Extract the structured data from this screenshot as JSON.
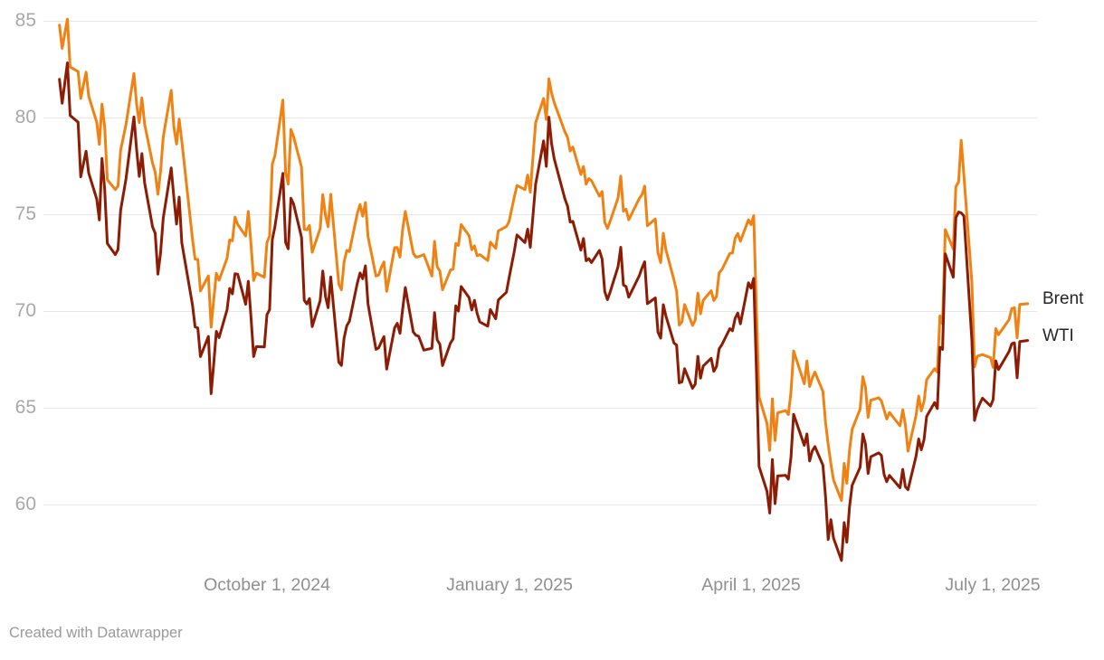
{
  "footer": {
    "credit": "Created with Datawrapper"
  },
  "chart_data": {
    "type": "line",
    "title": "",
    "xlabel": "",
    "ylabel": "",
    "legend_position": "right-direct-label",
    "grid": true,
    "grid_color": "#e8e8e8",
    "ylim": [
      57,
      85.5
    ],
    "y_ticks": [
      85,
      80,
      75,
      70,
      65,
      60
    ],
    "x_tick_labels": [
      "October 1, 2024",
      "January 1, 2025",
      "April 1, 2025",
      "July 1, 2025"
    ],
    "x_tick_dates": [
      "2024-10-01",
      "2025-01-01",
      "2025-04-01",
      "2025-07-01"
    ],
    "x_range": [
      "2024-07-15",
      "2025-07-14"
    ],
    "series": [
      {
        "name": "Brent",
        "color": "#f08214"
      },
      {
        "name": "WTI",
        "color": "#8c1c04"
      }
    ],
    "rows": [
      [
        "2024-07-15",
        84.8,
        82.0
      ],
      [
        "2024-07-16",
        83.6,
        80.76
      ],
      [
        "2024-07-18",
        85.11,
        82.85
      ],
      [
        "2024-07-19",
        82.63,
        80.13
      ],
      [
        "2024-07-22",
        82.4,
        79.78
      ],
      [
        "2024-07-23",
        81.01,
        76.96
      ],
      [
        "2024-07-25",
        82.37,
        78.28
      ],
      [
        "2024-07-26",
        81.13,
        77.16
      ],
      [
        "2024-07-29",
        79.78,
        75.81
      ],
      [
        "2024-07-30",
        78.63,
        74.73
      ],
      [
        "2024-07-31",
        80.72,
        77.91
      ],
      [
        "2024-08-01",
        79.52,
        76.31
      ],
      [
        "2024-08-02",
        76.81,
        73.52
      ],
      [
        "2024-08-05",
        76.3,
        72.94
      ],
      [
        "2024-08-06",
        76.48,
        73.2
      ],
      [
        "2024-08-07",
        78.33,
        75.23
      ],
      [
        "2024-08-09",
        79.66,
        76.84
      ],
      [
        "2024-08-12",
        82.3,
        80.06
      ],
      [
        "2024-08-13",
        80.69,
        78.35
      ],
      [
        "2024-08-14",
        79.76,
        76.98
      ],
      [
        "2024-08-15",
        81.04,
        78.16
      ],
      [
        "2024-08-16",
        79.68,
        76.65
      ],
      [
        "2024-08-19",
        77.66,
        74.37
      ],
      [
        "2024-08-20",
        77.2,
        74.04
      ],
      [
        "2024-08-21",
        76.05,
        71.93
      ],
      [
        "2024-08-22",
        77.22,
        73.01
      ],
      [
        "2024-08-23",
        79.02,
        74.83
      ],
      [
        "2024-08-26",
        81.43,
        77.42
      ],
      [
        "2024-08-27",
        79.55,
        75.91
      ],
      [
        "2024-08-28",
        78.65,
        74.52
      ],
      [
        "2024-08-29",
        79.94,
        75.91
      ],
      [
        "2024-08-30",
        78.8,
        73.55
      ],
      [
        "2024-09-03",
        73.75,
        70.34
      ],
      [
        "2024-09-04",
        72.7,
        69.2
      ],
      [
        "2024-09-05",
        72.69,
        69.15
      ],
      [
        "2024-09-06",
        71.06,
        67.67
      ],
      [
        "2024-09-09",
        71.84,
        68.71
      ],
      [
        "2024-09-10",
        69.19,
        65.75
      ],
      [
        "2024-09-11",
        70.61,
        67.31
      ],
      [
        "2024-09-12",
        71.97,
        68.97
      ],
      [
        "2024-09-13",
        71.61,
        68.65
      ],
      [
        "2024-09-16",
        72.75,
        70.09
      ],
      [
        "2024-09-17",
        73.7,
        71.19
      ],
      [
        "2024-09-18",
        73.65,
        70.91
      ],
      [
        "2024-09-19",
        74.88,
        71.95
      ],
      [
        "2024-09-20",
        74.49,
        71.92
      ],
      [
        "2024-09-23",
        73.9,
        70.37
      ],
      [
        "2024-09-24",
        75.17,
        71.56
      ],
      [
        "2024-09-25",
        73.46,
        69.69
      ],
      [
        "2024-09-26",
        71.6,
        67.67
      ],
      [
        "2024-09-27",
        71.98,
        68.18
      ],
      [
        "2024-09-30",
        71.77,
        68.17
      ],
      [
        "2024-10-01",
        73.56,
        69.83
      ],
      [
        "2024-10-02",
        73.9,
        70.1
      ],
      [
        "2024-10-03",
        77.62,
        73.71
      ],
      [
        "2024-10-04",
        78.05,
        74.38
      ],
      [
        "2024-10-07",
        80.93,
        77.14
      ],
      [
        "2024-10-08",
        77.18,
        73.57
      ],
      [
        "2024-10-09",
        76.58,
        73.24
      ],
      [
        "2024-10-10",
        79.4,
        75.85
      ],
      [
        "2024-10-11",
        79.04,
        75.56
      ],
      [
        "2024-10-14",
        77.46,
        73.83
      ],
      [
        "2024-10-15",
        74.25,
        70.58
      ],
      [
        "2024-10-16",
        74.22,
        70.39
      ],
      [
        "2024-10-17",
        74.45,
        70.67
      ],
      [
        "2024-10-18",
        73.06,
        69.22
      ],
      [
        "2024-10-21",
        74.29,
        70.56
      ],
      [
        "2024-10-22",
        76.04,
        72.09
      ],
      [
        "2024-10-23",
        74.96,
        70.77
      ],
      [
        "2024-10-24",
        74.38,
        70.19
      ],
      [
        "2024-10-25",
        76.05,
        71.78
      ],
      [
        "2024-10-28",
        71.42,
        67.38
      ],
      [
        "2024-10-29",
        71.12,
        67.21
      ],
      [
        "2024-10-30",
        72.55,
        68.61
      ],
      [
        "2024-10-31",
        73.16,
        69.26
      ],
      [
        "2024-11-01",
        73.1,
        69.49
      ],
      [
        "2024-11-04",
        75.08,
        71.47
      ],
      [
        "2024-11-05",
        75.53,
        71.99
      ],
      [
        "2024-11-06",
        74.92,
        71.69
      ],
      [
        "2024-11-07",
        75.63,
        72.36
      ],
      [
        "2024-11-08",
        73.87,
        70.38
      ],
      [
        "2024-11-11",
        71.83,
        68.04
      ],
      [
        "2024-11-12",
        71.89,
        68.12
      ],
      [
        "2024-11-13",
        72.28,
        68.43
      ],
      [
        "2024-11-14",
        72.56,
        68.7
      ],
      [
        "2024-11-15",
        71.04,
        67.02
      ],
      [
        "2024-11-18",
        73.3,
        69.16
      ],
      [
        "2024-11-19",
        73.31,
        69.39
      ],
      [
        "2024-11-20",
        72.81,
        68.87
      ],
      [
        "2024-11-21",
        74.23,
        70.1
      ],
      [
        "2024-11-22",
        75.17,
        71.24
      ],
      [
        "2024-11-25",
        73.01,
        68.94
      ],
      [
        "2024-11-26",
        72.81,
        68.77
      ],
      [
        "2024-11-27",
        72.83,
        68.72
      ],
      [
        "2024-11-29",
        72.94,
        68.0
      ],
      [
        "2024-12-02",
        71.83,
        68.1
      ],
      [
        "2024-12-03",
        73.62,
        69.94
      ],
      [
        "2024-12-04",
        72.31,
        68.54
      ],
      [
        "2024-12-05",
        72.09,
        68.3
      ],
      [
        "2024-12-06",
        71.12,
        67.2
      ],
      [
        "2024-12-09",
        72.14,
        68.37
      ],
      [
        "2024-12-10",
        72.19,
        68.59
      ],
      [
        "2024-12-11",
        73.52,
        70.29
      ],
      [
        "2024-12-12",
        73.41,
        70.02
      ],
      [
        "2024-12-13",
        74.49,
        71.29
      ],
      [
        "2024-12-16",
        73.91,
        70.71
      ],
      [
        "2024-12-17",
        73.19,
        70.08
      ],
      [
        "2024-12-18",
        73.39,
        70.58
      ],
      [
        "2024-12-19",
        72.88,
        69.91
      ],
      [
        "2024-12-20",
        72.94,
        69.46
      ],
      [
        "2024-12-23",
        72.63,
        69.24
      ],
      [
        "2024-12-24",
        73.58,
        70.1
      ],
      [
        "2024-12-26",
        73.26,
        69.62
      ],
      [
        "2024-12-27",
        74.17,
        70.6
      ],
      [
        "2024-12-30",
        74.39,
        70.99
      ],
      [
        "2024-12-31",
        74.64,
        71.72
      ],
      [
        "2025-01-02",
        75.93,
        73.13
      ],
      [
        "2025-01-03",
        76.51,
        73.96
      ],
      [
        "2025-01-06",
        76.3,
        73.56
      ],
      [
        "2025-01-07",
        77.05,
        74.25
      ],
      [
        "2025-01-08",
        76.16,
        73.32
      ],
      [
        "2025-01-10",
        79.76,
        76.57
      ],
      [
        "2025-01-13",
        81.01,
        78.82
      ],
      [
        "2025-01-14",
        79.92,
        77.5
      ],
      [
        "2025-01-15",
        82.03,
        80.04
      ],
      [
        "2025-01-16",
        81.29,
        78.68
      ],
      [
        "2025-01-17",
        80.79,
        77.88
      ],
      [
        "2025-01-21",
        79.29,
        75.83
      ],
      [
        "2025-01-22",
        79.0,
        75.44
      ],
      [
        "2025-01-23",
        78.29,
        74.62
      ],
      [
        "2025-01-24",
        78.5,
        74.66
      ],
      [
        "2025-01-27",
        77.08,
        73.17
      ],
      [
        "2025-01-28",
        77.49,
        73.77
      ],
      [
        "2025-01-29",
        76.58,
        72.62
      ],
      [
        "2025-01-30",
        76.87,
        72.73
      ],
      [
        "2025-01-31",
        76.76,
        72.53
      ],
      [
        "2025-02-03",
        75.96,
        73.16
      ],
      [
        "2025-02-04",
        76.2,
        72.7
      ],
      [
        "2025-02-05",
        74.61,
        71.03
      ],
      [
        "2025-02-06",
        74.29,
        70.61
      ],
      [
        "2025-02-07",
        74.66,
        71.0
      ],
      [
        "2025-02-10",
        75.87,
        72.32
      ],
      [
        "2025-02-11",
        77.0,
        73.32
      ],
      [
        "2025-02-12",
        75.18,
        71.37
      ],
      [
        "2025-02-13",
        75.29,
        71.29
      ],
      [
        "2025-02-14",
        74.74,
        70.74
      ],
      [
        "2025-02-18",
        75.84,
        71.85
      ],
      [
        "2025-02-19",
        76.04,
        72.25
      ],
      [
        "2025-02-20",
        76.48,
        72.57
      ],
      [
        "2025-02-21",
        74.43,
        70.4
      ],
      [
        "2025-02-24",
        74.78,
        70.7
      ],
      [
        "2025-02-25",
        73.02,
        68.93
      ],
      [
        "2025-02-26",
        72.53,
        68.62
      ],
      [
        "2025-02-27",
        74.04,
        70.35
      ],
      [
        "2025-02-28",
        73.18,
        69.76
      ],
      [
        "2025-03-03",
        71.62,
        68.37
      ],
      [
        "2025-03-04",
        71.04,
        68.26
      ],
      [
        "2025-03-05",
        69.3,
        66.31
      ],
      [
        "2025-03-06",
        69.46,
        66.36
      ],
      [
        "2025-03-07",
        70.36,
        67.04
      ],
      [
        "2025-03-10",
        69.28,
        66.03
      ],
      [
        "2025-03-11",
        69.56,
        66.25
      ],
      [
        "2025-03-12",
        70.95,
        67.68
      ],
      [
        "2025-03-13",
        69.88,
        66.55
      ],
      [
        "2025-03-14",
        70.58,
        67.18
      ],
      [
        "2025-03-17",
        71.07,
        67.58
      ],
      [
        "2025-03-18",
        70.56,
        66.9
      ],
      [
        "2025-03-19",
        70.78,
        67.16
      ],
      [
        "2025-03-20",
        72.0,
        68.07
      ],
      [
        "2025-03-21",
        72.16,
        68.28
      ],
      [
        "2025-03-24",
        73.0,
        69.11
      ],
      [
        "2025-03-25",
        73.02,
        69.0
      ],
      [
        "2025-03-26",
        73.79,
        69.65
      ],
      [
        "2025-03-27",
        74.03,
        69.92
      ],
      [
        "2025-03-28",
        73.63,
        69.36
      ],
      [
        "2025-03-31",
        74.74,
        71.48
      ],
      [
        "2025-04-01",
        74.49,
        71.2
      ],
      [
        "2025-04-02",
        74.95,
        71.71
      ],
      [
        "2025-04-03",
        70.14,
        66.95
      ],
      [
        "2025-04-04",
        65.58,
        61.99
      ],
      [
        "2025-04-07",
        64.21,
        60.7
      ],
      [
        "2025-04-08",
        62.82,
        59.58
      ],
      [
        "2025-04-09",
        65.48,
        62.35
      ],
      [
        "2025-04-10",
        63.33,
        60.07
      ],
      [
        "2025-04-11",
        64.76,
        61.5
      ],
      [
        "2025-04-14",
        64.88,
        61.53
      ],
      [
        "2025-04-15",
        64.67,
        61.33
      ],
      [
        "2025-04-16",
        65.85,
        62.47
      ],
      [
        "2025-04-17",
        67.96,
        64.68
      ],
      [
        "2025-04-21",
        66.26,
        63.08
      ],
      [
        "2025-04-22",
        67.44,
        63.67
      ],
      [
        "2025-04-23",
        66.12,
        62.27
      ],
      [
        "2025-04-24",
        66.55,
        62.79
      ],
      [
        "2025-04-25",
        66.87,
        63.02
      ],
      [
        "2025-04-28",
        65.86,
        62.05
      ],
      [
        "2025-04-29",
        64.25,
        60.42
      ],
      [
        "2025-04-30",
        63.12,
        58.21
      ],
      [
        "2025-05-01",
        62.13,
        59.24
      ],
      [
        "2025-05-02",
        61.29,
        58.29
      ],
      [
        "2025-05-05",
        60.23,
        57.13
      ],
      [
        "2025-05-06",
        62.15,
        59.09
      ],
      [
        "2025-05-07",
        61.12,
        58.07
      ],
      [
        "2025-05-08",
        62.84,
        59.91
      ],
      [
        "2025-05-09",
        63.91,
        61.02
      ],
      [
        "2025-05-12",
        64.96,
        61.95
      ],
      [
        "2025-05-13",
        66.63,
        63.67
      ],
      [
        "2025-05-14",
        66.09,
        63.15
      ],
      [
        "2025-05-15",
        64.53,
        61.62
      ],
      [
        "2025-05-16",
        65.41,
        62.49
      ],
      [
        "2025-05-19",
        65.54,
        62.69
      ],
      [
        "2025-05-20",
        65.38,
        62.56
      ],
      [
        "2025-05-21",
        64.91,
        61.57
      ],
      [
        "2025-05-22",
        64.44,
        61.2
      ],
      [
        "2025-05-23",
        64.78,
        61.53
      ],
      [
        "2025-05-27",
        64.09,
        60.89
      ],
      [
        "2025-05-28",
        64.92,
        61.84
      ],
      [
        "2025-05-29",
        64.15,
        60.94
      ],
      [
        "2025-05-30",
        62.78,
        60.79
      ],
      [
        "2025-06-02",
        64.63,
        62.52
      ],
      [
        "2025-06-03",
        65.63,
        63.41
      ],
      [
        "2025-06-04",
        64.86,
        62.85
      ],
      [
        "2025-06-05",
        65.34,
        63.37
      ],
      [
        "2025-06-06",
        66.47,
        64.58
      ],
      [
        "2025-06-09",
        67.04,
        65.29
      ],
      [
        "2025-06-10",
        66.87,
        64.98
      ],
      [
        "2025-06-11",
        69.77,
        68.15
      ],
      [
        "2025-06-12",
        69.36,
        68.04
      ],
      [
        "2025-06-13",
        74.23,
        72.98
      ],
      [
        "2025-06-16",
        73.23,
        71.77
      ],
      [
        "2025-06-17",
        76.45,
        74.84
      ],
      [
        "2025-06-18",
        76.7,
        75.14
      ],
      [
        "2025-06-19",
        78.85,
        75.1
      ],
      [
        "2025-06-20",
        77.01,
        74.93
      ],
      [
        "2025-06-23",
        71.48,
        68.51
      ],
      [
        "2025-06-24",
        67.14,
        64.37
      ],
      [
        "2025-06-25",
        67.68,
        64.92
      ],
      [
        "2025-06-26",
        67.73,
        65.24
      ],
      [
        "2025-06-27",
        67.77,
        65.52
      ],
      [
        "2025-06-30",
        67.61,
        65.11
      ],
      [
        "2025-07-01",
        67.11,
        65.45
      ],
      [
        "2025-07-02",
        69.11,
        67.45
      ],
      [
        "2025-07-03",
        68.8,
        67.0
      ],
      [
        "2025-07-07",
        69.58,
        67.93
      ],
      [
        "2025-07-08",
        70.15,
        68.33
      ],
      [
        "2025-07-09",
        70.19,
        68.38
      ],
      [
        "2025-07-10",
        68.64,
        66.57
      ],
      [
        "2025-07-11",
        70.36,
        68.45
      ],
      [
        "2025-07-14",
        70.4,
        68.5
      ]
    ]
  }
}
